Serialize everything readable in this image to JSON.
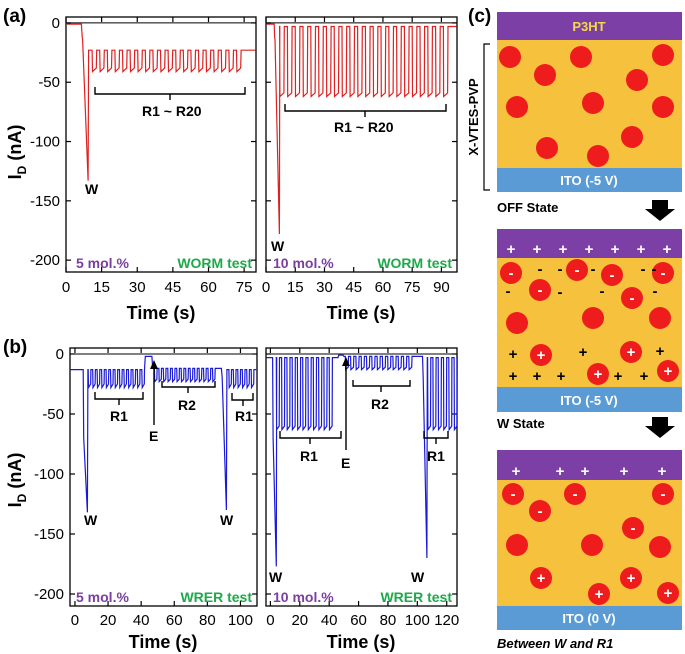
{
  "figure": {
    "panel_a_label": "(a)",
    "panel_b_label": "(b)",
    "panel_c_label": "(c)"
  },
  "colors": {
    "worm_trace": "#e02020",
    "wrer_trace": "#1a1ad6",
    "concentration_text": "#7a3fa0",
    "test_text": "#1fa84a",
    "p3ht": "#7b3fa6",
    "dielectric": "#f6c13c",
    "ito": "#5b9bd5",
    "charge": "#ee1c1c",
    "p3ht_text": "#f6d84a"
  },
  "chart_data": [
    {
      "id": "a-left",
      "type": "line",
      "title": "",
      "xlabel": "Time (s)",
      "ylabel": "I_D (nA)",
      "xlim": [
        0,
        80
      ],
      "ylim": [
        -210,
        5
      ],
      "xticks": [
        0,
        15,
        30,
        45,
        60,
        75
      ],
      "yticks": [
        0,
        -50,
        -100,
        -150,
        -200
      ],
      "series": [
        {
          "name": "WORM 5 mol.%",
          "color": "#e02020",
          "pulse_start": 11,
          "pulse_period": 3.2,
          "pulse_count": 20,
          "baseline": -1,
          "write_min": -133,
          "read_min": -41,
          "read_max": -23
        }
      ],
      "annotations": [
        "W",
        "R1 ~ R20"
      ],
      "concentration": "5 mol.%",
      "test": "WORM test"
    },
    {
      "id": "a-right",
      "type": "line",
      "xlabel": "Time (s)",
      "ylabel": "",
      "xlim": [
        0,
        98
      ],
      "ylim": [
        -210,
        5
      ],
      "xticks": [
        0,
        15,
        30,
        45,
        60,
        75,
        90
      ],
      "yticks": [
        0,
        -50,
        -100,
        -150,
        -200
      ],
      "series": [
        {
          "name": "WORM 10 mol.%",
          "color": "#e02020",
          "pulse_start": 7,
          "pulse_period": 4.0,
          "pulse_count": 22,
          "baseline": -1,
          "write_min": -178,
          "read_min": -62,
          "read_max": -3
        }
      ],
      "annotations": [
        "W",
        "R1 ~ R20"
      ],
      "concentration": "10 mol.%",
      "test": "WORM test"
    },
    {
      "id": "b-left",
      "type": "line",
      "xlabel": "Time (s)",
      "ylabel": "I_D (nA)",
      "xlim": [
        -3,
        110
      ],
      "ylim": [
        -210,
        5
      ],
      "xticks": [
        0,
        20,
        40,
        60,
        80,
        100
      ],
      "yticks": [
        0,
        -50,
        -100,
        -150,
        -200
      ],
      "series": [
        {
          "name": "WRER 5 mol.%",
          "color": "#1a1ad6",
          "write1_min": -132,
          "read1_min": -28,
          "read1_max": -13,
          "erase_level": -2,
          "read2_min": -23,
          "read2_max": -12,
          "write2_min": -130
        }
      ],
      "annotations": [
        "W",
        "R1",
        "E",
        "R2",
        "W",
        "R1"
      ],
      "concentration": "5 mol.%",
      "test": "WRER test"
    },
    {
      "id": "b-right",
      "type": "line",
      "xlabel": "Time (s)",
      "ylabel": "",
      "xlim": [
        -3,
        127
      ],
      "ylim": [
        -210,
        5
      ],
      "xticks": [
        0,
        20,
        40,
        60,
        80,
        100,
        120
      ],
      "yticks": [
        0,
        -50,
        -100,
        -150,
        -200
      ],
      "series": [
        {
          "name": "WRER 10 mol.%",
          "color": "#1a1ad6",
          "write1_min": -177,
          "read1_min": -63,
          "read1_max": -3,
          "erase_level": -1,
          "read2_min": -13,
          "read2_max": -2,
          "write2_min": -170
        }
      ],
      "annotations": [
        "W",
        "R1",
        "E",
        "R2",
        "W",
        "R1"
      ],
      "concentration": "10 mol.%",
      "test": "WRER test"
    }
  ],
  "schematic": {
    "p3ht_label": "P3HT",
    "dielectric_label": "X-VTES-PVP",
    "states": [
      {
        "ito_label": "ITO (-5 V)",
        "caption": "OFF State"
      },
      {
        "ito_label": "ITO (-5 V)",
        "caption": "W State"
      },
      {
        "ito_label": "ITO (0 V)",
        "caption": "Between W and R1"
      }
    ],
    "plus_sign": "+",
    "minus_sign": "-"
  }
}
